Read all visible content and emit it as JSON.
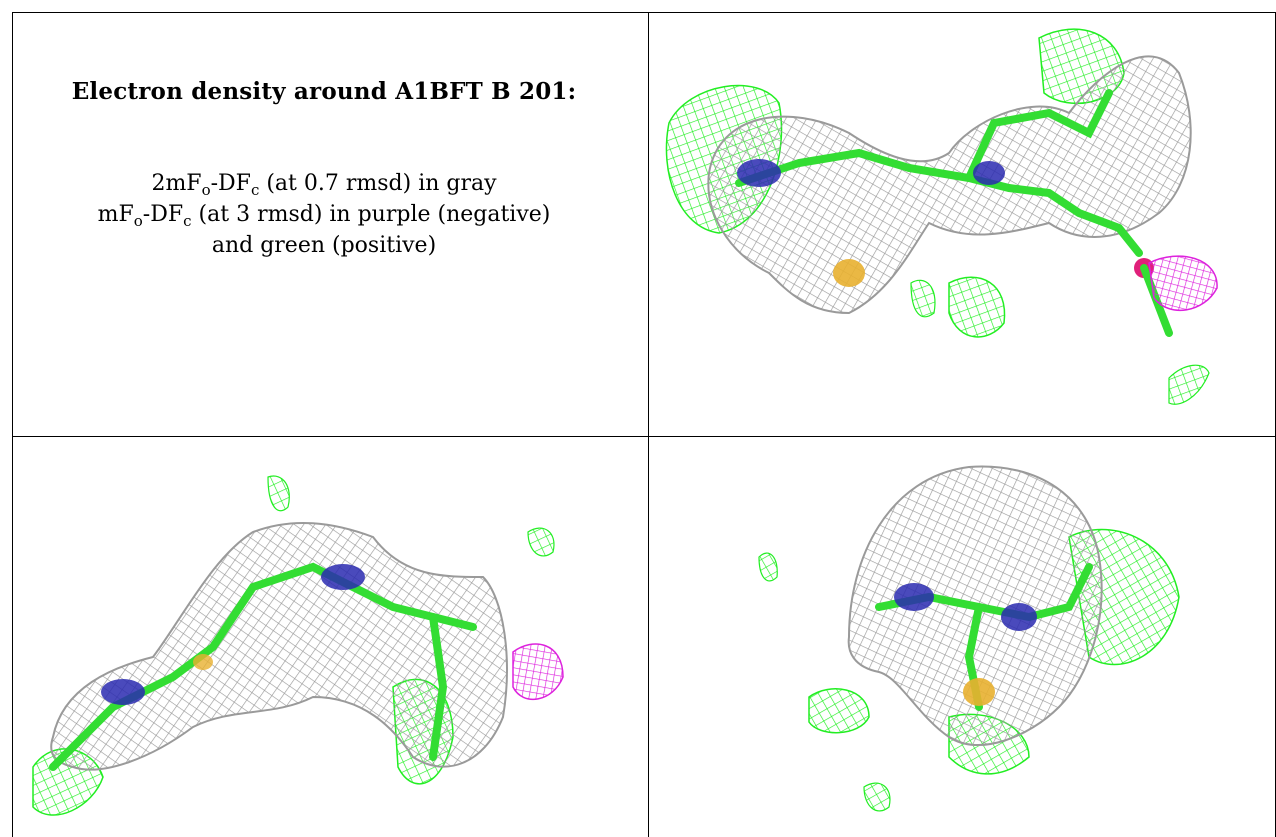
{
  "caption": {
    "title": "Electron density around A1BFT B 201:",
    "line1": {
      "a": "2mF",
      "s1": "o",
      "b": "-DF",
      "s2": "c",
      "c": " (at 0.7 rmsd) in gray"
    },
    "line2": {
      "a": "mF",
      "s1": "o",
      "b": "-DF",
      "s2": "c",
      "c": " (at 3 rmsd) in purple (negative)"
    },
    "line3": "and green (positive)"
  },
  "colors": {
    "density_2fofc": "#9a9a9a",
    "density_fofc_positive": "#22ee22",
    "density_fofc_negative": "#dd22dd",
    "carbon": "#33dd33",
    "nitrogen": "#2a2ab0",
    "sulfur": "#e8b030",
    "oxygen": "#e0207a"
  }
}
